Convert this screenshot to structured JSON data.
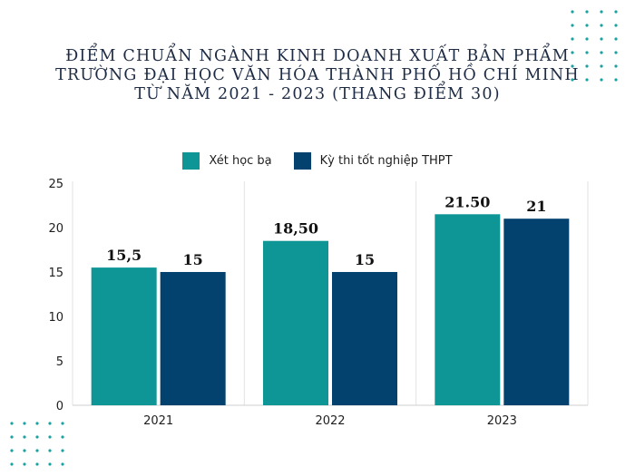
{
  "title_lines": [
    "ĐIỂM CHUẨN NGÀNH KINH DOANH XUẤT BẢN PHẨM",
    "TRƯỜNG ĐẠI HỌC VĂN HÓA THÀNH PHỐ HỒ CHÍ MINH",
    "TỪ NĂM 2021 - 2023 (THANG ĐIỂM 30)"
  ],
  "chart_data": {
    "type": "bar",
    "title": "ĐIỂM CHUẨN NGÀNH KINH DOANH XUẤT BẢN PHẨM TRƯỜNG ĐẠI HỌC VĂN HÓA THÀNH PHỐ HỒ CHÍ MINH TỪ NĂM 2021 - 2023 (THANG ĐIỂM 30)",
    "categories": [
      "2021",
      "2022",
      "2023"
    ],
    "series": [
      {
        "name": "Xét học bạ",
        "values": [
          15.5,
          18.5,
          21.5
        ],
        "labels": [
          "15,5",
          "18,50",
          "21.50"
        ],
        "color": "#0e9696"
      },
      {
        "name": "Kỳ thi tốt nghiệp THPT",
        "values": [
          15,
          15,
          21
        ],
        "labels": [
          "15",
          "15",
          "21"
        ],
        "color": "#03416e"
      }
    ],
    "ylim": [
      0,
      25
    ],
    "yticks": [
      "0",
      "5",
      "10",
      "15",
      "20",
      "25"
    ],
    "xlabel": "",
    "ylabel": "",
    "grid": "vertical separators",
    "legend": "top-center"
  },
  "colors": {
    "teal": "#0e9696",
    "navy": "#03416e",
    "dots": "#1aa3a3"
  }
}
